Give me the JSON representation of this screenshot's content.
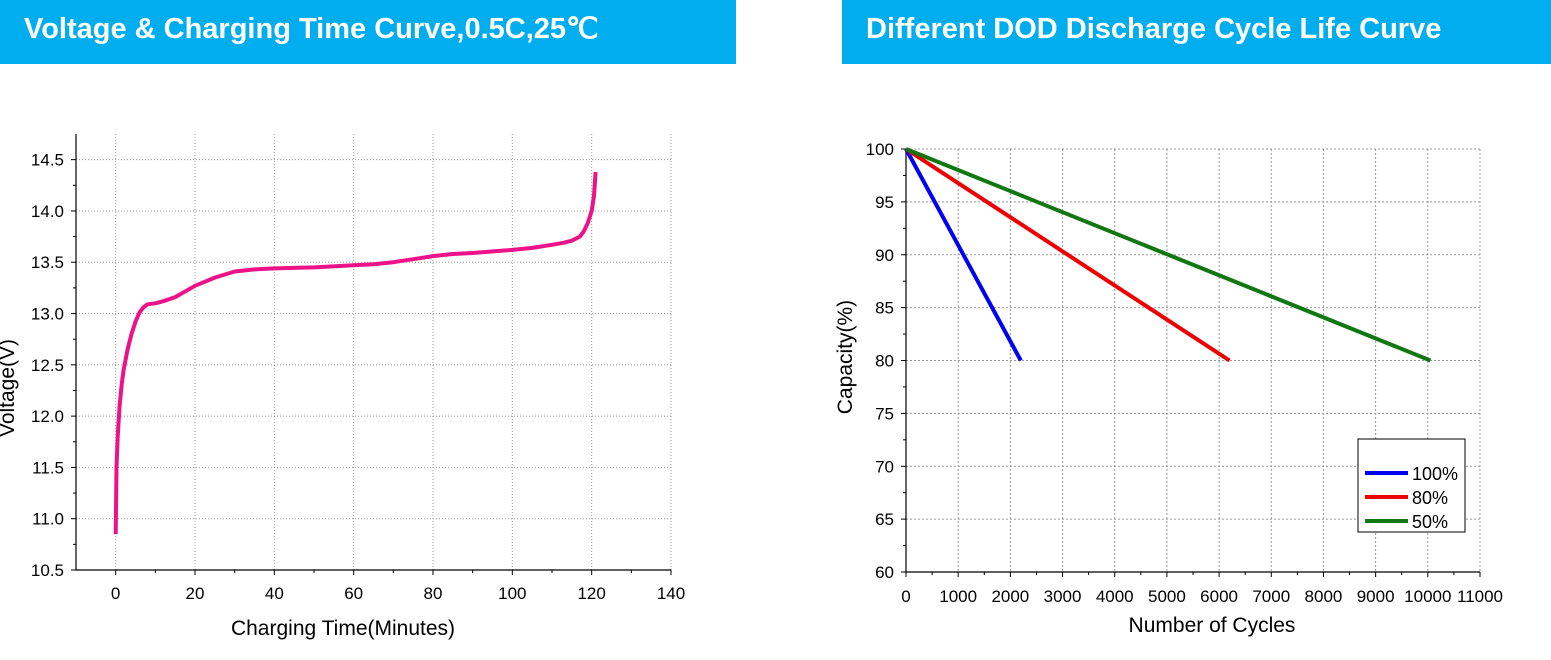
{
  "colors": {
    "banner_bg": "#00aeef",
    "banner_text": "#ffffff",
    "voltage_line": "#ee1289",
    "dod_100": "#0000ee",
    "dod_80": "#ee0000",
    "dod_50": "#117711"
  },
  "chart_data": [
    {
      "type": "line",
      "title": "Voltage & Charging Time Curve,0.5C,25℃",
      "xlabel": "Charging Time(Minutes)",
      "ylabel": "Voltage(V)",
      "xlim": [
        -10,
        140
      ],
      "ylim": [
        10.5,
        14.75
      ],
      "x_ticks": [
        0,
        20,
        40,
        60,
        80,
        100,
        120,
        140
      ],
      "x_tick_labels": [
        "0",
        "20",
        "40",
        "60",
        "80",
        "100",
        "120",
        "140"
      ],
      "y_ticks": [
        10.5,
        11.0,
        11.5,
        12.0,
        12.5,
        13.0,
        13.5,
        14.0,
        14.5
      ],
      "y_tick_labels": [
        "10.5",
        "11.0",
        "11.5",
        "12.0",
        "12.5",
        "13.0",
        "13.5",
        "14.0",
        "14.5"
      ],
      "grid": true,
      "series": [
        {
          "x": [
            0,
            0.2,
            0.5,
            1,
            1.5,
            2,
            3,
            4,
            5,
            6,
            7,
            8,
            10,
            12,
            15,
            20,
            25,
            30,
            35,
            40,
            50,
            60,
            65,
            70,
            75,
            80,
            85,
            90,
            100,
            105,
            110,
            113,
            115,
            117,
            118,
            119,
            120,
            120.6,
            121
          ],
          "y": [
            10.85,
            11.5,
            11.8,
            12.1,
            12.3,
            12.45,
            12.65,
            12.8,
            12.92,
            13.01,
            13.06,
            13.09,
            13.1,
            13.12,
            13.16,
            13.27,
            13.35,
            13.41,
            13.43,
            13.44,
            13.45,
            13.47,
            13.48,
            13.5,
            13.53,
            13.56,
            13.58,
            13.59,
            13.62,
            13.64,
            13.67,
            13.69,
            13.71,
            13.75,
            13.8,
            13.88,
            14.0,
            14.15,
            14.38
          ]
        }
      ]
    },
    {
      "type": "line",
      "title": "Different DOD Discharge Cycle Life Curve",
      "xlabel": "Number of Cycles",
      "ylabel": "Capacity(%)",
      "xlim": [
        0,
        11000
      ],
      "ylim": [
        60,
        100
      ],
      "x_ticks": [
        0,
        1000,
        2000,
        3000,
        4000,
        5000,
        6000,
        7000,
        8000,
        9000,
        10000,
        11000
      ],
      "x_tick_labels": [
        "0",
        "1000",
        "2000",
        "3000",
        "4000",
        "5000",
        "6000",
        "7000",
        "8000",
        "9000",
        "10000",
        "11000"
      ],
      "y_ticks": [
        60,
        65,
        70,
        75,
        80,
        85,
        90,
        95,
        100
      ],
      "y_tick_labels": [
        "60",
        "65",
        "70",
        "75",
        "80",
        "85",
        "90",
        "95",
        "100"
      ],
      "grid": true,
      "legend_position": "bottom-right",
      "series": [
        {
          "name": "100%",
          "x": [
            0,
            2200
          ],
          "y": [
            100,
            80
          ]
        },
        {
          "name": "80%",
          "x": [
            0,
            6200
          ],
          "y": [
            100,
            80
          ]
        },
        {
          "name": "50%",
          "x": [
            0,
            10050
          ],
          "y": [
            100,
            80
          ]
        }
      ]
    }
  ]
}
